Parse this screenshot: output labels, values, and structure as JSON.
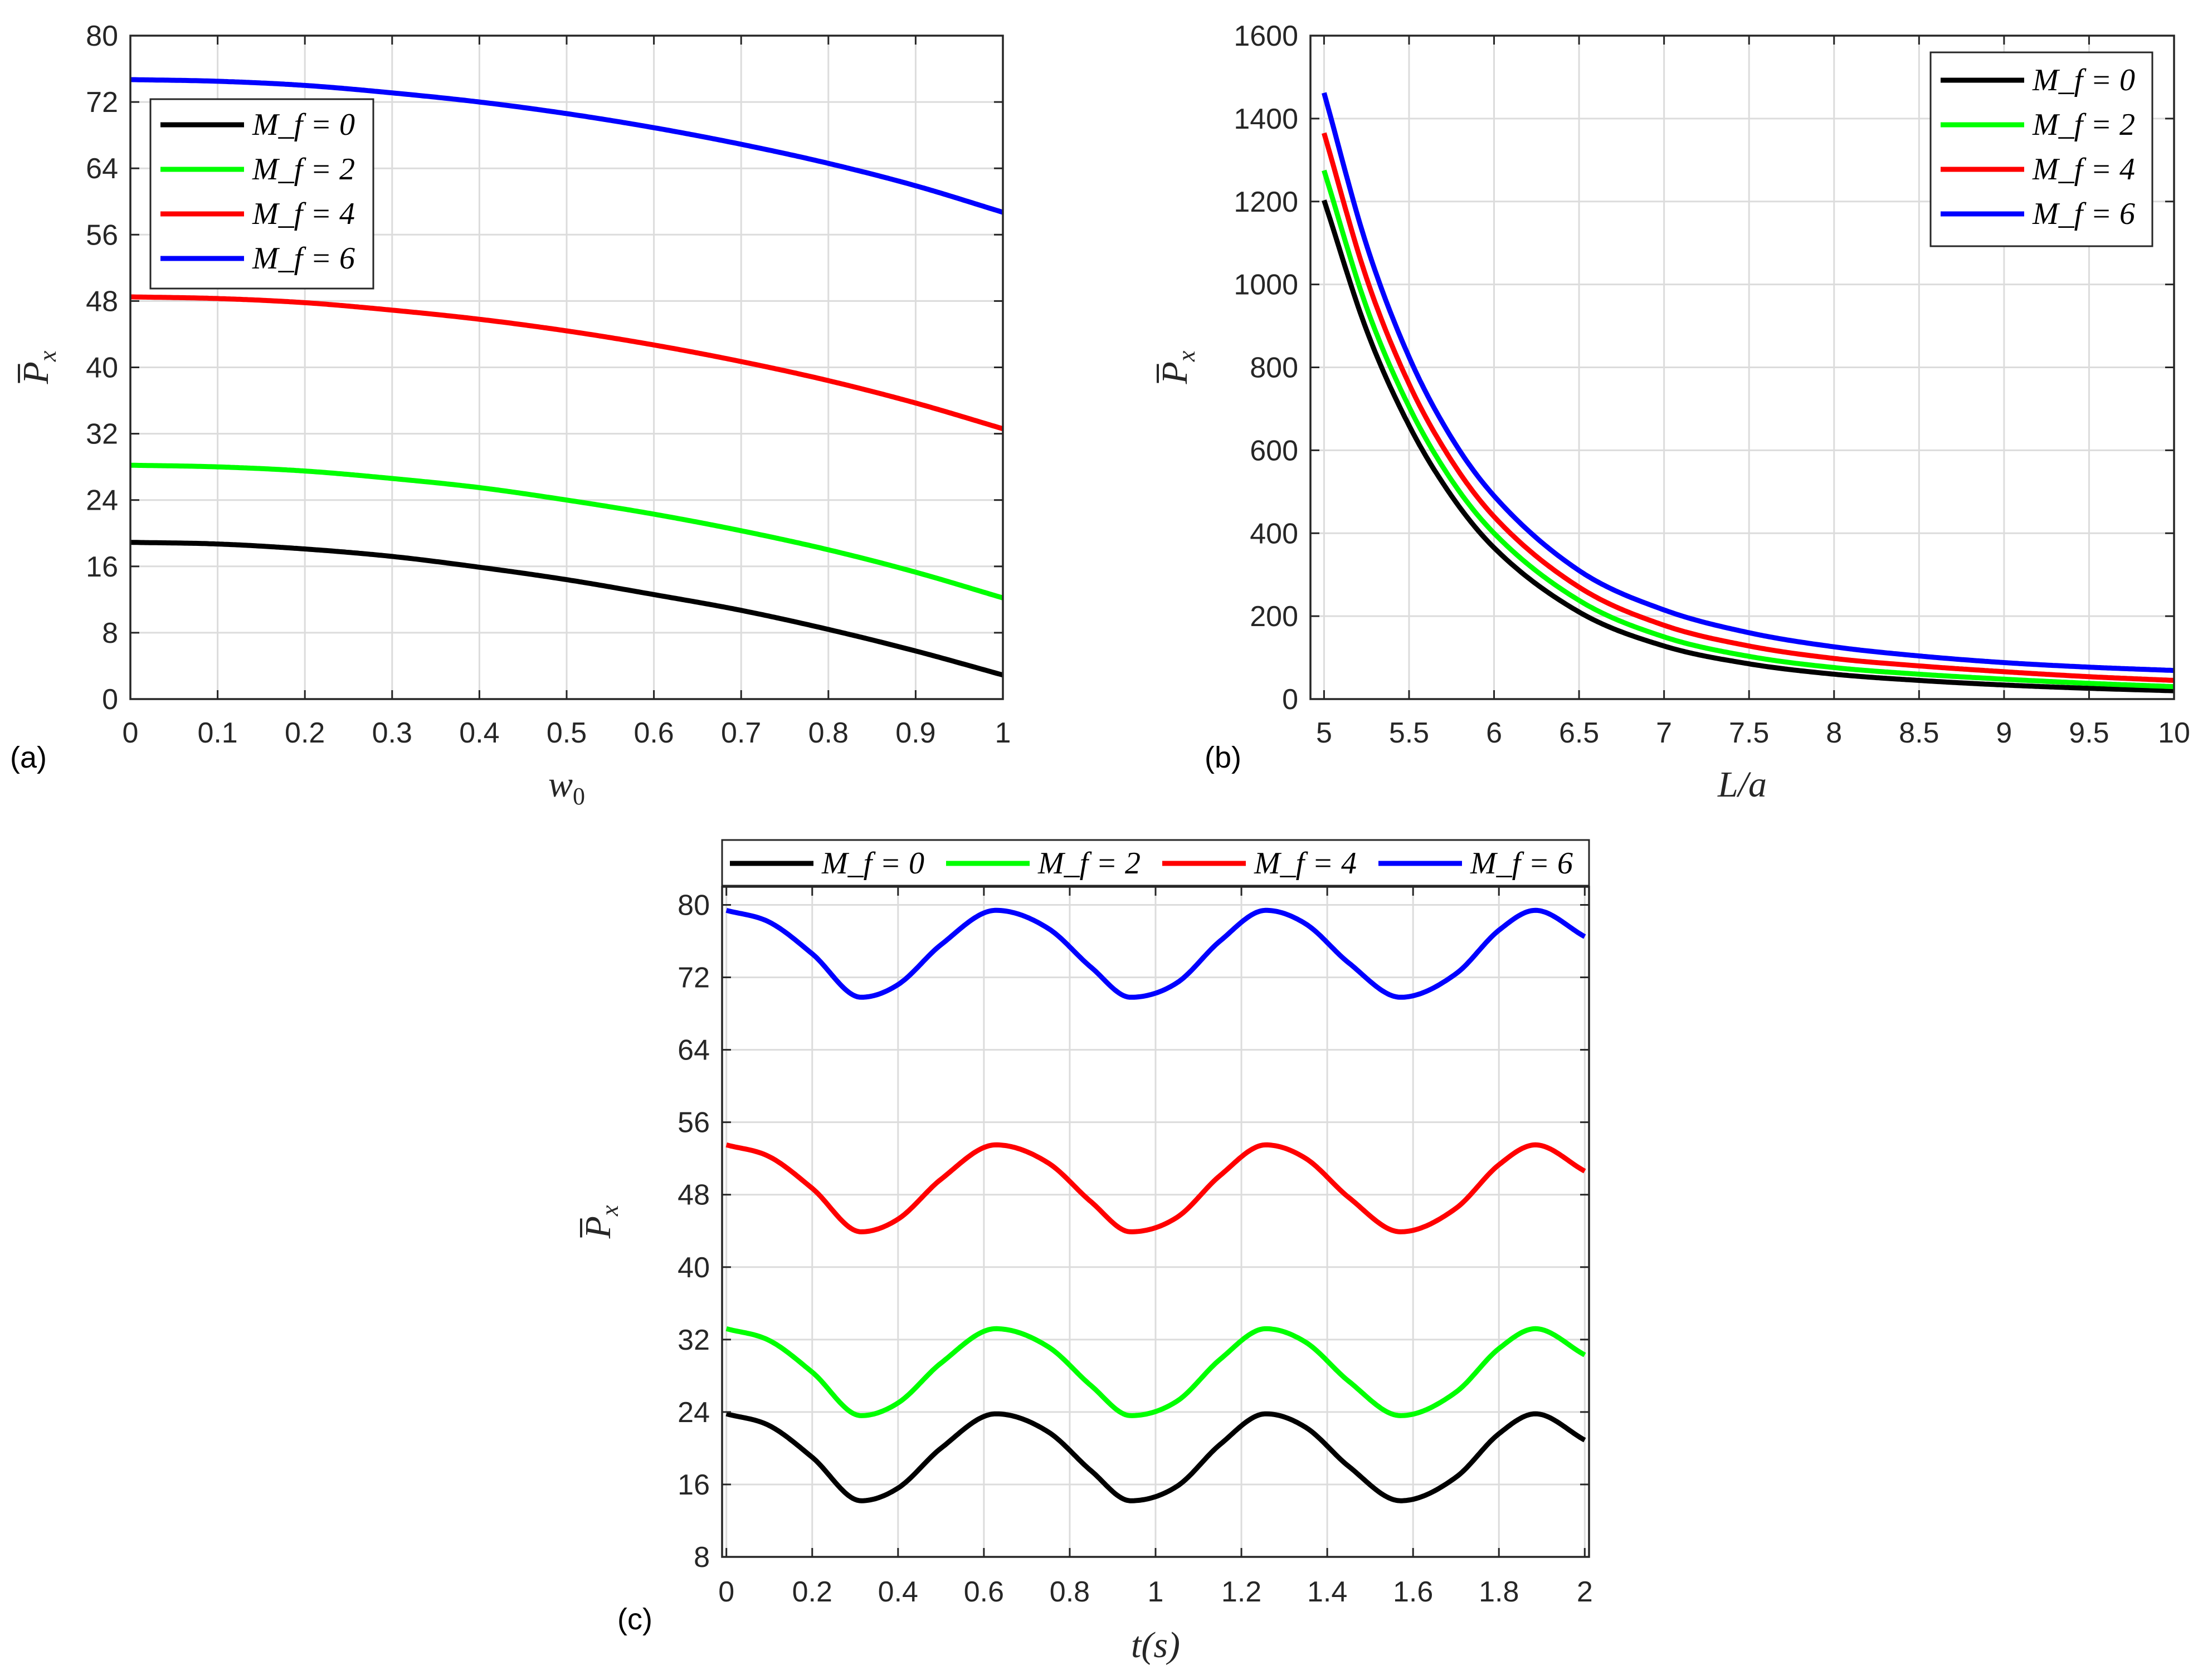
{
  "chart_data": [
    {
      "id": "a",
      "type": "line",
      "panel_label": "(a)",
      "xlabel": "w",
      "xlabel_sub": "0",
      "ylabel": "P",
      "ylabel_sub": "x",
      "xlim": [
        0,
        1
      ],
      "ylim": [
        0,
        80
      ],
      "xticks": [
        0,
        0.1,
        0.2,
        0.3,
        0.4,
        0.5,
        0.6,
        0.7,
        0.8,
        0.9,
        1
      ],
      "xtick_labels": [
        "0",
        "0.1",
        "0.2",
        "0.3",
        "0.4",
        "0.5",
        "0.6",
        "0.7",
        "0.8",
        "0.9",
        "1"
      ],
      "yticks": [
        0,
        8,
        16,
        24,
        32,
        40,
        48,
        56,
        64,
        72,
        80
      ],
      "ytick_labels": [
        "0",
        "8",
        "16",
        "24",
        "32",
        "40",
        "48",
        "56",
        "64",
        "72",
        "80"
      ],
      "grid": true,
      "legend_position": "top-left",
      "series": [
        {
          "name": "M_f = 0",
          "legend": "M_f = 0",
          "color": "#000000",
          "x": [
            0,
            0.1,
            0.2,
            0.3,
            0.4,
            0.5,
            0.6,
            0.7,
            0.8,
            0.9,
            1.0
          ],
          "y": [
            18.9,
            18.7,
            18.1,
            17.2,
            15.9,
            14.4,
            12.6,
            10.7,
            8.4,
            5.8,
            2.9
          ]
        },
        {
          "name": "M_f = 2",
          "legend": "M_f = 2",
          "color": "#00ff00",
          "x": [
            0,
            0.1,
            0.2,
            0.3,
            0.4,
            0.5,
            0.6,
            0.7,
            0.8,
            0.9,
            1.0
          ],
          "y": [
            28.2,
            28.0,
            27.5,
            26.6,
            25.5,
            24.0,
            22.3,
            20.3,
            18.0,
            15.3,
            12.2
          ]
        },
        {
          "name": "M_f = 4",
          "legend": "M_f = 4",
          "color": "#ff0000",
          "x": [
            0,
            0.1,
            0.2,
            0.3,
            0.4,
            0.5,
            0.6,
            0.7,
            0.8,
            0.9,
            1.0
          ],
          "y": [
            48.5,
            48.3,
            47.8,
            46.9,
            45.8,
            44.4,
            42.7,
            40.7,
            38.4,
            35.7,
            32.6
          ]
        },
        {
          "name": "M_f = 6",
          "legend": "M_f = 6",
          "color": "#0000ff",
          "x": [
            0,
            0.1,
            0.2,
            0.3,
            0.4,
            0.5,
            0.6,
            0.7,
            0.8,
            0.9,
            1.0
          ],
          "y": [
            74.7,
            74.5,
            74.0,
            73.1,
            72.0,
            70.6,
            68.9,
            66.9,
            64.6,
            61.9,
            58.7
          ]
        }
      ]
    },
    {
      "id": "b",
      "type": "line",
      "panel_label": "(b)",
      "xlabel": "L/a",
      "xlabel_sub": "",
      "ylabel": "P",
      "ylabel_sub": "x",
      "xlim": [
        4.92,
        10
      ],
      "ylim": [
        0,
        1600
      ],
      "xticks": [
        5,
        5.5,
        6,
        6.5,
        7,
        7.5,
        8,
        8.5,
        9,
        9.5,
        10
      ],
      "xtick_labels": [
        "5",
        "5.5",
        "6",
        "6.5",
        "7",
        "7.5",
        "8",
        "8.5",
        "9",
        "9.5",
        "10"
      ],
      "yticks": [
        0,
        200,
        400,
        600,
        800,
        1000,
        1200,
        1400,
        1600
      ],
      "ytick_labels": [
        "0",
        "200",
        "400",
        "600",
        "800",
        "1000",
        "1200",
        "1400",
        "1600"
      ],
      "grid": true,
      "legend_position": "top-right",
      "series": [
        {
          "name": "M_f = 0",
          "legend": "M_f = 0",
          "color": "#000000",
          "x": [
            5.0,
            5.25,
            5.5,
            5.75,
            6.0,
            6.5,
            7.0,
            7.5,
            8.0,
            8.5,
            9.0,
            9.5,
            10.0
          ],
          "y": [
            1203,
            890,
            660,
            490,
            365,
            210,
            128,
            85,
            60,
            45,
            34,
            26,
            20
          ]
        },
        {
          "name": "M_f = 2",
          "legend": "M_f = 2",
          "color": "#00ff00",
          "x": [
            5.0,
            5.25,
            5.5,
            5.75,
            6.0,
            6.5,
            7.0,
            7.5,
            8.0,
            8.5,
            9.0,
            9.5,
            10.0
          ],
          "y": [
            1275,
            945,
            705,
            528,
            400,
            238,
            150,
            103,
            76,
            60,
            48,
            38,
            30
          ]
        },
        {
          "name": "M_f = 4",
          "legend": "M_f = 4",
          "color": "#ff0000",
          "x": [
            5.0,
            5.25,
            5.5,
            5.75,
            6.0,
            6.5,
            7.0,
            7.5,
            8.0,
            8.5,
            9.0,
            9.5,
            10.0
          ],
          "y": [
            1365,
            1015,
            760,
            575,
            440,
            270,
            178,
            128,
            98,
            80,
            66,
            54,
            45
          ]
        },
        {
          "name": "M_f = 6",
          "legend": "M_f = 6",
          "color": "#0000ff",
          "x": [
            5.0,
            5.25,
            5.5,
            5.75,
            6.0,
            6.5,
            7.0,
            7.5,
            8.0,
            8.5,
            9.0,
            9.5,
            10.0
          ],
          "y": [
            1462,
            1095,
            825,
            630,
            490,
            310,
            215,
            160,
            126,
            104,
            88,
            77,
            69
          ]
        }
      ]
    },
    {
      "id": "c",
      "type": "line",
      "panel_label": "(c)",
      "xlabel": "t(s)",
      "xlabel_sub": "",
      "ylabel": "P",
      "ylabel_sub": "x",
      "xlim": [
        -0.01,
        2.01
      ],
      "ylim": [
        8,
        82
      ],
      "xticks": [
        0,
        0.2,
        0.4,
        0.6,
        0.8,
        1,
        1.2,
        1.4,
        1.6,
        1.8,
        2
      ],
      "xtick_labels": [
        "0",
        "0.2",
        "0.4",
        "0.6",
        "0.8",
        "1",
        "1.2",
        "1.4",
        "1.6",
        "1.8",
        "2"
      ],
      "yticks": [
        8,
        16,
        24,
        32,
        40,
        48,
        56,
        64,
        72,
        80
      ],
      "ytick_labels": [
        "8",
        "16",
        "24",
        "32",
        "40",
        "48",
        "56",
        "64",
        "72",
        "80"
      ],
      "grid": true,
      "legend_position": "top-outside-horizontal",
      "series": [
        {
          "name": "M_f = 0",
          "legend": "M_f = 0",
          "color": "#000000",
          "t": [
            0,
            0.1,
            0.2,
            0.314,
            0.4,
            0.5,
            0.628,
            0.75,
            0.85,
            0.942,
            1.05,
            1.15,
            1.257,
            1.35,
            1.45,
            1.571,
            1.7,
            1.8,
            1.885,
            2.0
          ],
          "y": [
            23.8,
            22.5,
            19.0,
            14.2,
            15.6,
            20.0,
            23.8,
            21.8,
            17.5,
            14.2,
            15.8,
            20.4,
            23.8,
            22.3,
            18.0,
            14.2,
            16.8,
            21.6,
            23.8,
            20.9
          ]
        },
        {
          "name": "M_f = 2",
          "legend": "M_f = 2",
          "color": "#00ff00",
          "t": [
            0,
            0.1,
            0.2,
            0.314,
            0.4,
            0.5,
            0.628,
            0.75,
            0.85,
            0.942,
            1.05,
            1.15,
            1.257,
            1.35,
            1.45,
            1.571,
            1.7,
            1.8,
            1.885,
            2.0
          ],
          "y": [
            33.2,
            31.9,
            28.4,
            23.6,
            25.0,
            29.4,
            33.2,
            31.2,
            26.9,
            23.6,
            25.2,
            29.8,
            33.2,
            31.7,
            27.4,
            23.6,
            26.2,
            31.0,
            33.2,
            30.3
          ]
        },
        {
          "name": "M_f = 4",
          "legend": "M_f = 4",
          "color": "#ff0000",
          "t": [
            0,
            0.1,
            0.2,
            0.314,
            0.4,
            0.5,
            0.628,
            0.75,
            0.85,
            0.942,
            1.05,
            1.15,
            1.257,
            1.35,
            1.45,
            1.571,
            1.7,
            1.8,
            1.885,
            2.0
          ],
          "y": [
            53.5,
            52.2,
            48.7,
            43.9,
            45.3,
            49.7,
            53.5,
            51.5,
            47.2,
            43.9,
            45.5,
            50.1,
            53.5,
            52.0,
            47.7,
            43.9,
            46.5,
            51.3,
            53.5,
            50.6
          ]
        },
        {
          "name": "M_f = 6",
          "legend": "M_f = 6",
          "color": "#0000ff",
          "t": [
            0,
            0.1,
            0.2,
            0.314,
            0.4,
            0.5,
            0.628,
            0.75,
            0.85,
            0.942,
            1.05,
            1.15,
            1.257,
            1.35,
            1.45,
            1.571,
            1.7,
            1.8,
            1.885,
            2.0
          ],
          "y": [
            79.4,
            78.1,
            74.6,
            69.8,
            71.2,
            75.6,
            79.4,
            77.4,
            73.1,
            69.8,
            71.4,
            76.0,
            79.4,
            77.9,
            73.6,
            69.8,
            72.4,
            77.2,
            79.4,
            76.5
          ]
        }
      ]
    }
  ]
}
